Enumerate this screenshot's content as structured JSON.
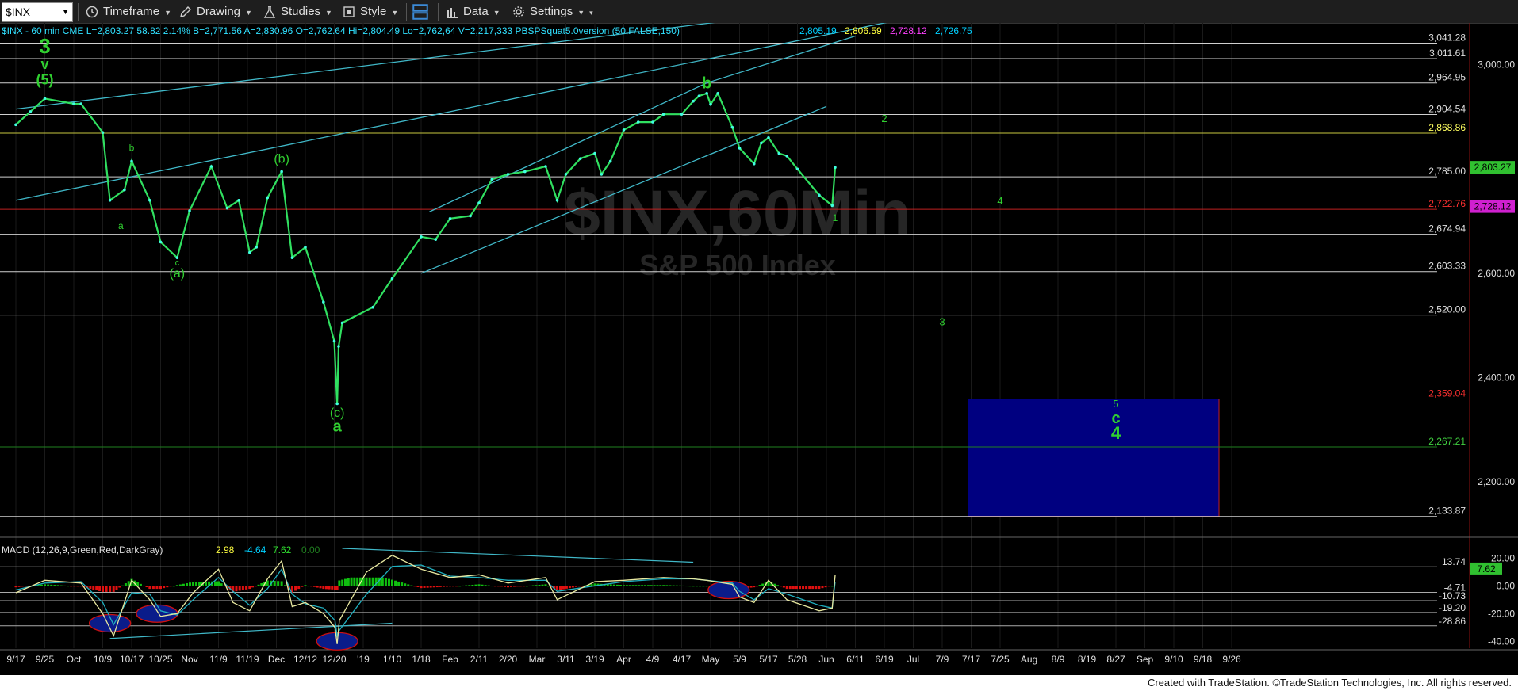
{
  "toolbar": {
    "symbol": "$INX",
    "timeframe_label": "Timeframe",
    "drawing_label": "Drawing",
    "studies_label": "Studies",
    "style_label": "Style",
    "data_label": "Data",
    "settings_label": "Settings"
  },
  "header": {
    "symbol_line": "$INX - 60 min  CME  L=2,803.27  58.82  2.14%  B=2,771.56  A=2,830.96  O=2,762.64  Hi=2,804.49  Lo=2,762,64  V=2,217,333  PBSPSquat5.0version (50,FALSE,150)",
    "indicator_values": [
      {
        "text": "2,805.19",
        "color": "#00d0ff"
      },
      {
        "text": "2,806.59",
        "color": "#ffff40"
      },
      {
        "text": "2,728.12",
        "color": "#ff40ff"
      },
      {
        "text": "2,726.75",
        "color": "#00d0ff"
      }
    ]
  },
  "watermark": {
    "symbol": "$INX,60Min",
    "name": "S&P 500 Index"
  },
  "colors": {
    "price": "#30e060",
    "wave_label": "#30d030",
    "channel": "#40b8c8",
    "level_white": "#d0d0d0",
    "level_red": "#c02020",
    "level_green": "#208020",
    "level_yellow": "#c8c840",
    "target_box": "#000080",
    "macd_line": "#e8e8a0",
    "macd_signal": "#20b0c0",
    "hist_pos": "#10c010",
    "hist_neg": "#e01010",
    "axis_text": "#e0e0e0"
  },
  "chart_data": [
    {
      "type": "line",
      "title": "$INX,60Min",
      "subtitle": "S&P 500 Index",
      "ylim": [
        2100,
        3080
      ],
      "y_ticks": [
        "3,000.00",
        "2,800.00",
        "2,600.00",
        "2,400.00",
        "2,200.00"
      ],
      "y_tick_values": [
        3000,
        2800,
        2600,
        2400,
        2200
      ],
      "x_ticks": [
        "9/17",
        "9/25",
        "Oct",
        "10/9",
        "10/17",
        "10/25",
        "Nov",
        "11/9",
        "11/19",
        "Dec",
        "12/12",
        "12/20",
        "'19",
        "1/10",
        "1/18",
        "Feb",
        "2/11",
        "2/20",
        "Mar",
        "3/11",
        "3/19",
        "Apr",
        "4/9",
        "4/17",
        "May",
        "5/9",
        "5/17",
        "5/28",
        "Jun",
        "6/11",
        "6/19",
        "Jul",
        "7/9",
        "7/17",
        "7/25",
        "Aug",
        "8/9",
        "8/19",
        "8/27",
        "Sep",
        "9/10",
        "9/18",
        "9/26"
      ],
      "series": [
        {
          "x": [
            "9/17",
            "9/21",
            "9/25",
            "10/1",
            "10/3",
            "10/9",
            "10/11",
            "10/15",
            "10/17",
            "10/22",
            "10/25",
            "10/29",
            "11/1",
            "11/7",
            "11/12",
            "11/16",
            "11/20",
            "11/23",
            "11/28",
            "12/3",
            "12/7",
            "12/12",
            "12/17",
            "12/20",
            "12/24",
            "12/26",
            "12/31",
            "1/4",
            "1/10",
            "1/18",
            "1/25",
            "2/1",
            "2/8",
            "2/11",
            "2/15",
            "2/20",
            "2/27",
            "3/4",
            "3/8",
            "3/11",
            "3/15",
            "3/19",
            "3/22",
            "3/26",
            "4/1",
            "4/5",
            "4/9",
            "4/12",
            "4/17",
            "4/23",
            "4/26",
            "4/30",
            "5/1",
            "5/3",
            "5/7",
            "5/9",
            "5/13",
            "5/15",
            "5/17",
            "5/21",
            "5/24",
            "5/28",
            "5/31",
            "6/3",
            "6/4"
          ],
          "values": [
            2885,
            2910,
            2935,
            2925,
            2925,
            2870,
            2740,
            2760,
            2815,
            2740,
            2660,
            2630,
            2720,
            2805,
            2725,
            2740,
            2640,
            2650,
            2745,
            2795,
            2630,
            2650,
            2545,
            2470,
            2350,
            2460,
            2505,
            2535,
            2590,
            2670,
            2665,
            2705,
            2710,
            2735,
            2780,
            2790,
            2795,
            2805,
            2740,
            2790,
            2820,
            2830,
            2790,
            2815,
            2875,
            2890,
            2890,
            2905,
            2905,
            2930,
            2940,
            2945,
            2924,
            2945,
            2880,
            2840,
            2810,
            2850,
            2860,
            2830,
            2825,
            2800,
            2750,
            2730,
            2803
          ]
        }
      ],
      "levels": [
        {
          "value": 3041.28,
          "label": "3,041.28",
          "style": "white"
        },
        {
          "value": 3011.61,
          "label": "3,011.61",
          "style": "white"
        },
        {
          "value": 2964.95,
          "label": "2,964.95",
          "style": "white"
        },
        {
          "value": 2904.54,
          "label": "2,904.54",
          "style": "white"
        },
        {
          "value": 2868.86,
          "label": "2,868.86",
          "style": "yellow"
        },
        {
          "value": 2785.0,
          "label": "2,785.00",
          "style": "white"
        },
        {
          "value": 2722.76,
          "label": "2,722.76",
          "style": "red"
        },
        {
          "value": 2674.94,
          "label": "2,674.94",
          "style": "white"
        },
        {
          "value": 2603.33,
          "label": "2,603.33",
          "style": "white"
        },
        {
          "value": 2520.0,
          "label": "2,520.00",
          "style": "white"
        },
        {
          "value": 2359.04,
          "label": "2,359.04",
          "style": "red"
        },
        {
          "value": 2267.21,
          "label": "2,267.21",
          "style": "green"
        },
        {
          "value": 2133.87,
          "label": "2,133.87",
          "style": "white"
        }
      ],
      "price_tags": [
        {
          "value": 2803.27,
          "label": "2,803.27",
          "bg": "#30c030",
          "fg": "#000000"
        },
        {
          "value": 2728.12,
          "label": "2,728.12",
          "bg": "#d020d0",
          "fg": "#000000"
        }
      ],
      "target_box": {
        "x_from": "7/17",
        "x_to": "9/26",
        "y_from": 2133.87,
        "y_to": 2359.04
      },
      "annotations": [
        {
          "text": "3",
          "x": "9/25",
          "y": 3022,
          "size": 26,
          "weight": "bold"
        },
        {
          "text": "v",
          "x": "9/25",
          "y": 2992,
          "size": 18,
          "weight": "bold"
        },
        {
          "text": "(5)",
          "x": "9/25",
          "y": 2962,
          "size": 18,
          "weight": "bold"
        },
        {
          "text": "b",
          "x": "10/17",
          "y": 2835,
          "size": 12,
          "weight": "normal"
        },
        {
          "text": "a",
          "x": "10/14",
          "y": 2685,
          "size": 12,
          "weight": "normal"
        },
        {
          "text": "c",
          "x": "10/29",
          "y": 2615,
          "size": 11,
          "weight": "normal"
        },
        {
          "text": "(a)",
          "x": "10/29",
          "y": 2592,
          "size": 16,
          "weight": "normal"
        },
        {
          "text": "(b)",
          "x": "12/3",
          "y": 2812,
          "size": 16,
          "weight": "normal"
        },
        {
          "text": "(c)",
          "x": "12/24",
          "y": 2325,
          "size": 16,
          "weight": "normal"
        },
        {
          "text": "a",
          "x": "12/24",
          "y": 2297,
          "size": 20,
          "weight": "bold"
        },
        {
          "text": "b",
          "x": "4/30",
          "y": 2955,
          "size": 20,
          "weight": "bold"
        },
        {
          "text": "1",
          "x": "6/4",
          "y": 2700,
          "size": 12,
          "weight": "normal"
        },
        {
          "text": "2",
          "x": "6/19",
          "y": 2890,
          "size": 13,
          "weight": "normal"
        },
        {
          "text": "4",
          "x": "7/25",
          "y": 2732,
          "size": 13,
          "weight": "normal"
        },
        {
          "text": "3",
          "x": "7/9",
          "y": 2500,
          "size": 13,
          "weight": "normal"
        },
        {
          "text": "5",
          "x": "8/27",
          "y": 2343,
          "size": 13,
          "weight": "normal"
        },
        {
          "text": "c",
          "x": "8/27",
          "y": 2313,
          "size": 20,
          "weight": "bold"
        },
        {
          "text": "4",
          "x": "8/27",
          "y": 2282,
          "size": 22,
          "weight": "bold"
        }
      ],
      "trendlines": [
        {
          "x1": "9/17",
          "y1": 2740,
          "x2": "8/9",
          "y2": 3148
        },
        {
          "x1": "9/17",
          "y1": 2915,
          "x2": "7/9",
          "y2": 3135
        },
        {
          "x1": "1/18",
          "y1": 2600,
          "x2": "6/1",
          "y2": 2920
        },
        {
          "x1": "1/22",
          "y1": 2718,
          "x2": "4/30",
          "y2": 2965
        },
        {
          "x1": "4/30",
          "y1": 2965,
          "x2": "6/11",
          "y2": 3055
        }
      ]
    },
    {
      "type": "line",
      "title": "MACD (12,26,9,Green,Red,DarkGray)",
      "legend_values": [
        {
          "text": "2.98",
          "color": "#ffff40"
        },
        {
          "text": "-4.64",
          "color": "#00d0ff"
        },
        {
          "text": "7.62",
          "color": "#30e030"
        },
        {
          "text": "0.00",
          "color": "#208020"
        }
      ],
      "ylim": [
        -45,
        27
      ],
      "y_ticks": [
        "20.00",
        "0.00",
        "-20.00",
        "-40.00"
      ],
      "y_tick_values": [
        20,
        0,
        -20,
        -40
      ],
      "levels": [
        {
          "value": 13.74,
          "label": "13.74"
        },
        {
          "value": -4.71,
          "label": "-4.71"
        },
        {
          "value": -10.73,
          "label": "-10.73"
        },
        {
          "value": -19.2,
          "label": "-19.20"
        },
        {
          "value": -28.86,
          "label": "-28.86"
        }
      ],
      "price_tags": [
        {
          "value": 7.62,
          "label": "7.62",
          "bg": "#30c030",
          "fg": "#000000"
        }
      ],
      "series": [
        {
          "name": "MACD",
          "x": [
            "9/17",
            "9/25",
            "10/3",
            "10/9",
            "10/12",
            "10/17",
            "10/22",
            "10/25",
            "10/29",
            "11/2",
            "11/9",
            "11/14",
            "11/20",
            "11/28",
            "12/3",
            "12/7",
            "12/12",
            "12/17",
            "12/21",
            "12/24",
            "12/27",
            "1/2",
            "1/10",
            "1/18",
            "2/1",
            "2/11",
            "2/20",
            "3/4",
            "3/8",
            "3/19",
            "4/1",
            "4/12",
            "4/23",
            "4/30",
            "5/7",
            "5/9",
            "5/13",
            "5/17",
            "5/24",
            "5/31",
            "6/3",
            "6/4"
          ],
          "values": [
            -5,
            4,
            2,
            -20,
            -36,
            4,
            -10,
            -22,
            -20,
            -5,
            12,
            -12,
            -18,
            5,
            18,
            -15,
            -12,
            -20,
            -30,
            -42,
            -25,
            10,
            22,
            12,
            6,
            8,
            2,
            6,
            -10,
            3,
            4,
            6,
            5,
            4,
            1,
            -8,
            -12,
            4,
            -10,
            -18,
            -16,
            7.62
          ]
        },
        {
          "name": "Signal",
          "x": [
            "9/17",
            "9/25",
            "10/3",
            "10/9",
            "10/12",
            "10/17",
            "10/22",
            "10/25",
            "10/29",
            "11/2",
            "11/9",
            "11/14",
            "11/20",
            "11/28",
            "12/3",
            "12/7",
            "12/12",
            "12/17",
            "12/21",
            "12/24",
            "12/27",
            "1/2",
            "1/10",
            "1/18",
            "2/1",
            "2/11",
            "2/20",
            "3/4",
            "3/8",
            "3/19",
            "4/1",
            "4/12",
            "4/23",
            "4/30",
            "5/7",
            "5/9",
            "5/13",
            "5/17",
            "5/24",
            "5/31",
            "6/3",
            "6/4"
          ],
          "values": [
            -3,
            2,
            3,
            -12,
            -28,
            -5,
            -6,
            -18,
            -21,
            -10,
            6,
            -4,
            -14,
            -2,
            12,
            -6,
            -13,
            -16,
            -25,
            -36,
            -32,
            -6,
            14,
            15,
            7,
            6,
            4,
            4,
            -4,
            0,
            3,
            5,
            5,
            4,
            2,
            -4,
            -10,
            -2,
            -6,
            -14,
            -16,
            3
          ]
        }
      ],
      "trendlines": [
        {
          "x1": "10/11",
          "y1": -38,
          "x2": "1/10",
          "y2": -27
        },
        {
          "x1": "12/31",
          "y1": 27,
          "x2": "4/23",
          "y2": 17
        }
      ],
      "highlights": [
        {
          "x": "10/11",
          "y": -27
        },
        {
          "x": "10/24",
          "y": -20
        },
        {
          "x": "12/24",
          "y": -40
        },
        {
          "x": "5/6",
          "y": -3
        }
      ]
    }
  ],
  "footer": {
    "credit": "Created with TradeStation. ©TradeStation Technologies, Inc. All rights reserved."
  }
}
